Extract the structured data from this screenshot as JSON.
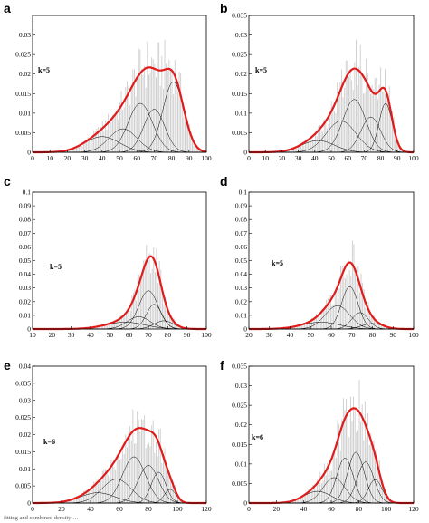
{
  "caption": "fitting and combined density …",
  "colors": {
    "mixture": "#e01b1b",
    "component": "#000000",
    "histogram": "#cccccc"
  },
  "chart_data": [
    {
      "panel": "a",
      "type": "bar",
      "k_label": "k=5",
      "xlim": [
        0,
        100
      ],
      "ylim": [
        0,
        0.035
      ],
      "xticks": [
        "0",
        "10",
        "20",
        "30",
        "40",
        "50",
        "60",
        "70",
        "80",
        "90",
        "100"
      ],
      "yticks": [
        "0",
        "0.005",
        "0.01",
        "0.015",
        "0.02",
        "0.025",
        "0.03"
      ],
      "components": [
        {
          "mean": 40,
          "sd": 10,
          "peak": 0.004
        },
        {
          "mean": 52,
          "sd": 8,
          "peak": 0.006
        },
        {
          "mean": 62,
          "sd": 7,
          "peak": 0.0125
        },
        {
          "mean": 70,
          "sd": 6,
          "peak": 0.011
        },
        {
          "mean": 81,
          "sd": 6,
          "peak": 0.018
        }
      ],
      "mixture": {
        "peaks": [
          [
            63,
            0.0245
          ],
          [
            80,
            0.025
          ]
        ]
      },
      "histogram_range": [
        20,
        98
      ]
    },
    {
      "panel": "b",
      "type": "bar",
      "k_label": "k=5",
      "xlim": [
        0,
        100
      ],
      "ylim": [
        0,
        0.035
      ],
      "xticks": [
        "0",
        "10",
        "20",
        "30",
        "40",
        "50",
        "60",
        "70",
        "80",
        "90",
        "100"
      ],
      "yticks": [
        "0",
        "0.005",
        "0.01",
        "0.015",
        "0.02",
        "0.025",
        "0.03",
        "0.035"
      ],
      "components": [
        {
          "mean": 42,
          "sd": 10,
          "peak": 0.003
        },
        {
          "mean": 56,
          "sd": 9,
          "peak": 0.008
        },
        {
          "mean": 64,
          "sd": 7,
          "peak": 0.0135
        },
        {
          "mean": 74,
          "sd": 6,
          "peak": 0.009
        },
        {
          "mean": 83,
          "sd": 4,
          "peak": 0.0125
        }
      ],
      "mixture": {
        "peaks": [
          [
            72,
            0.0255
          ]
        ]
      },
      "histogram_range": [
        20,
        98
      ]
    },
    {
      "panel": "c",
      "type": "bar",
      "k_label": "k=5",
      "xlim": [
        10,
        100
      ],
      "ylim": [
        0,
        0.1
      ],
      "xticks": [
        "10",
        "20",
        "30",
        "40",
        "50",
        "60",
        "70",
        "80",
        "90",
        "100"
      ],
      "yticks": [
        "0",
        "0.01",
        "0.02",
        "0.03",
        "0.04",
        "0.05",
        "0.06",
        "0.07",
        "0.08",
        "0.09",
        "0.1"
      ],
      "components": [
        {
          "mean": 58,
          "sd": 10,
          "peak": 0.005
        },
        {
          "mean": 65,
          "sd": 6,
          "peak": 0.009
        },
        {
          "mean": 70,
          "sd": 5,
          "peak": 0.028
        },
        {
          "mean": 73,
          "sd": 4,
          "peak": 0.018
        },
        {
          "mean": 78,
          "sd": 5,
          "peak": 0.006
        }
      ],
      "mixture": {
        "peaks": [
          [
            69,
            0.05
          ]
        ]
      },
      "histogram_range": [
        20,
        92
      ]
    },
    {
      "panel": "d",
      "type": "bar",
      "k_label": "k=5",
      "xlim": [
        20,
        100
      ],
      "ylim": [
        0,
        0.1
      ],
      "xticks": [
        "20",
        "30",
        "40",
        "50",
        "60",
        "70",
        "80",
        "90",
        "100"
      ],
      "yticks": [
        "0",
        "0.01",
        "0.02",
        "0.03",
        "0.04",
        "0.05",
        "0.06",
        "0.07",
        "0.08",
        "0.09",
        "0.1"
      ],
      "components": [
        {
          "mean": 55,
          "sd": 9,
          "peak": 0.005
        },
        {
          "mean": 63,
          "sd": 6,
          "peak": 0.017
        },
        {
          "mean": 69,
          "sd": 4,
          "peak": 0.031
        },
        {
          "mean": 74,
          "sd": 4,
          "peak": 0.012
        },
        {
          "mean": 80,
          "sd": 5,
          "peak": 0.004
        }
      ],
      "mixture": {
        "peaks": [
          [
            68,
            0.054
          ]
        ]
      },
      "histogram_range": [
        30,
        97
      ]
    },
    {
      "panel": "e",
      "type": "bar",
      "k_label": "k=6",
      "xlim": [
        0,
        120
      ],
      "ylim": [
        0,
        0.04
      ],
      "xticks": [
        "0",
        "20",
        "40",
        "60",
        "80",
        "100",
        "120"
      ],
      "yticks": [
        "0",
        "0.005",
        "0.01",
        "0.015",
        "0.02",
        "0.025",
        "0.03",
        "0.035",
        "0.04"
      ],
      "components": [
        {
          "mean": 45,
          "sd": 12,
          "peak": 0.003
        },
        {
          "mean": 58,
          "sd": 10,
          "peak": 0.007
        },
        {
          "mean": 70,
          "sd": 8,
          "peak": 0.0135
        },
        {
          "mean": 80,
          "sd": 7,
          "peak": 0.011
        },
        {
          "mean": 87,
          "sd": 5,
          "peak": 0.009
        },
        {
          "mean": 95,
          "sd": 4,
          "peak": 0.004
        }
      ],
      "mixture": {
        "peaks": [
          [
            74,
            0.0265
          ]
        ]
      },
      "histogram_range": [
        20,
        108
      ]
    },
    {
      "panel": "f",
      "type": "bar",
      "k_label": "k=6",
      "xlim": [
        0,
        120
      ],
      "ylim": [
        0,
        0.035
      ],
      "xticks": [
        "0",
        "20",
        "40",
        "60",
        "80",
        "100",
        "120"
      ],
      "yticks": [
        "0",
        "0.005",
        "0.01",
        "0.015",
        "0.02",
        "0.025",
        "0.03",
        "0.035"
      ],
      "components": [
        {
          "mean": 50,
          "sd": 10,
          "peak": 0.003
        },
        {
          "mean": 62,
          "sd": 8,
          "peak": 0.0065
        },
        {
          "mean": 70,
          "sd": 6,
          "peak": 0.0115
        },
        {
          "mean": 78,
          "sd": 6,
          "peak": 0.013
        },
        {
          "mean": 85,
          "sd": 6,
          "peak": 0.0105
        },
        {
          "mean": 92,
          "sd": 5,
          "peak": 0.006
        }
      ],
      "mixture": {
        "peaks": [
          [
            75,
            0.0275
          ]
        ]
      },
      "histogram_range": [
        20,
        108
      ]
    }
  ]
}
